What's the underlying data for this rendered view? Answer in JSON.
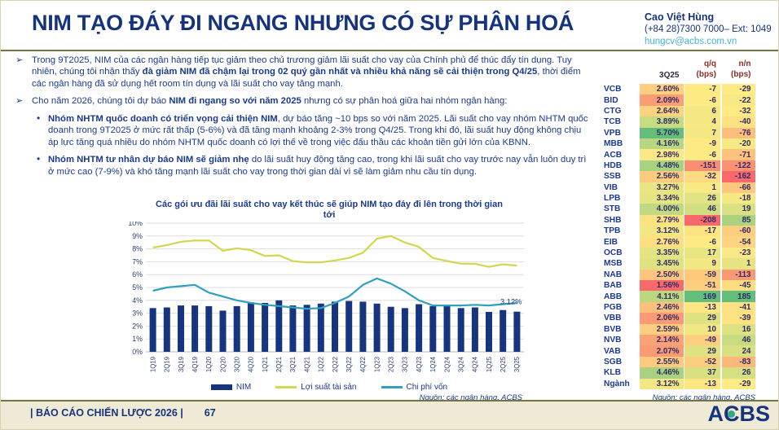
{
  "colors": {
    "navy": "#16337E",
    "text_navy": "#1B3A8F",
    "bar_navy": "#17357F",
    "yellow_line": "#D3D64E",
    "teal_line": "#2FA0BD",
    "email_teal": "#45B4CE",
    "olive_divider": "#75753F",
    "footer_bg": "#EFEAD6",
    "heat_low": "#F8696B",
    "heat_mid": "#FFEB84",
    "heat_high": "#63BE7B",
    "header_red": "#8B2E26",
    "logo_dot": "#36A889"
  },
  "header": {
    "title": "NIM TẠO ĐÁY ĐI NGANG NHƯNG CÓ SỰ PHÂN HOÁ",
    "contact_name": "Cao Việt Hùng",
    "contact_phone": "(+84 28)7300 7000– Ext: 1049",
    "contact_email": "hungcv@acbs.com.vn"
  },
  "bullets": {
    "b1": [
      {
        "t": "Trong 9T2025, NIM của các ngân hàng tiếp tục giảm theo chủ trương giảm lãi suất cho vay của Chính phủ để thúc đẩy tín dụng. Tuy nhiên, chúng tôi nhận thấy ",
        "b": false
      },
      {
        "t": "đà giảm NIM đã chậm lại trong 02 quý gần nhất và nhiều khả năng sẽ cải thiện trong Q4/25",
        "b": true
      },
      {
        "t": ", thời điểm các ngân hàng đã sử dụng hết room tín dụng và lãi suất cho vay tăng mạnh.",
        "b": false
      }
    ],
    "b2": [
      {
        "t": "Cho năm 2026, chúng tôi dự báo ",
        "b": false
      },
      {
        "t": "NIM đi ngang so với năm 2025",
        "b": true
      },
      {
        "t": " nhưng có sự phân hoá giữa hai nhóm ngân hàng:",
        "b": false
      }
    ],
    "s1": [
      {
        "t": "Nhóm NHTM quốc doanh có triển vọng cải thiện NIM",
        "b": true
      },
      {
        "t": ", dự báo tăng ~10 bps so với năm 2025. Lãi suất cho vay nhóm NHTM quốc doanh trong 9T2025 ở mức rất thấp (5-6%) và đã tăng mạnh khoảng 2-3% trong Q4/25. Trong khi đó, lãi suất huy động không chịu áp lực tăng quá nhiều do nhóm NHTM quốc doanh có lợi thế về trong việc đấu thầu các khoản tiền gửi lớn của KBNN.",
        "b": false
      }
    ],
    "s2": [
      {
        "t": "Nhóm NHTM tư nhân dự báo NIM sẽ giảm nhẹ",
        "b": true
      },
      {
        "t": " do lãi suất huy động tăng cao, trong khi lãi suất cho vay trước nay vẫn luôn duy trì ở mức cao (7-9%) và khó tăng mạnh lãi suất cho vay trong thời gian dài vì sẽ làm giảm nhu cầu tín dụng.",
        "b": false
      }
    ]
  },
  "chart": {
    "source": "Nguồn: các ngân hàng, ACBS"
  },
  "chart_data": {
    "type": "bar",
    "title": "Các gói ưu đãi lãi suất cho vay kết thúc sẽ giúp NIM tạo đáy đi lên trong thời gian tới",
    "ylim": [
      0,
      10
    ],
    "ytick_suffix": "%",
    "grid": true,
    "legend_position": "bottom",
    "categories": [
      "1Q19",
      "2Q19",
      "3Q19",
      "4Q19",
      "1Q20",
      "2Q20",
      "3Q20",
      "4Q20",
      "1Q21",
      "2Q21",
      "3Q21",
      "4Q21",
      "1Q22",
      "2Q22",
      "3Q22",
      "4Q22",
      "1Q23",
      "2Q23",
      "3Q23",
      "4Q23",
      "1Q24",
      "2Q24",
      "3Q24",
      "4Q24",
      "1Q25",
      "2Q25",
      "3Q25"
    ],
    "series": [
      {
        "name": "NIM",
        "type": "bar",
        "values": [
          3.4,
          3.45,
          3.6,
          3.6,
          3.55,
          3.2,
          3.55,
          3.85,
          3.8,
          4.0,
          3.6,
          3.65,
          3.75,
          3.9,
          3.95,
          3.9,
          3.75,
          3.5,
          3.4,
          3.7,
          3.55,
          3.55,
          3.4,
          3.45,
          3.1,
          3.25,
          3.12
        ]
      },
      {
        "name": "Lợi suất tài sản",
        "type": "line",
        "values": [
          8.1,
          8.3,
          8.55,
          8.65,
          8.65,
          7.85,
          8.05,
          7.9,
          7.45,
          7.5,
          7.05,
          6.95,
          6.95,
          7.1,
          7.3,
          7.7,
          8.8,
          9.0,
          8.5,
          8.15,
          7.3,
          7.05,
          6.85,
          6.85,
          6.6,
          6.8,
          6.7
        ]
      },
      {
        "name": "Chi phí vốn",
        "type": "line",
        "values": [
          4.75,
          5.0,
          5.1,
          5.2,
          4.6,
          4.3,
          4.0,
          3.8,
          3.65,
          3.55,
          3.45,
          3.35,
          3.4,
          3.8,
          4.3,
          5.2,
          5.7,
          5.3,
          4.7,
          4.0,
          3.6,
          3.6,
          3.6,
          3.65,
          3.6,
          3.7,
          3.8
        ]
      }
    ],
    "annotation": {
      "text": "3.12%",
      "x": "3Q25",
      "y": 3.12
    }
  },
  "table": {
    "headers": {
      "period": "3Q25",
      "qoq": "q/q",
      "yoy": "n/n",
      "bps": "(bps)"
    },
    "rows": [
      {
        "bank": "VCB",
        "nim": "2.60%",
        "qoq": -7,
        "yoy": -29
      },
      {
        "bank": "BID",
        "nim": "2.09%",
        "qoq": -6,
        "yoy": -22
      },
      {
        "bank": "CTG",
        "nim": "2.64%",
        "qoq": 6,
        "yoy": -32
      },
      {
        "bank": "TCB",
        "nim": "3.89%",
        "qoq": 4,
        "yoy": -40
      },
      {
        "bank": "VPB",
        "nim": "5.70%",
        "qoq": 7,
        "yoy": -76
      },
      {
        "bank": "MBB",
        "nim": "4.16%",
        "qoq": -9,
        "yoy": -20
      },
      {
        "bank": "ACB",
        "nim": "2.98%",
        "qoq": -6,
        "yoy": -71
      },
      {
        "bank": "HDB",
        "nim": "4.48%",
        "qoq": -151,
        "yoy": -122
      },
      {
        "bank": "SSB",
        "nim": "2.56%",
        "qoq": -32,
        "yoy": -162
      },
      {
        "bank": "VIB",
        "nim": "3.27%",
        "qoq": 1,
        "yoy": -66
      },
      {
        "bank": "LPB",
        "nim": "3.34%",
        "qoq": 26,
        "yoy": -18
      },
      {
        "bank": "STB",
        "nim": "4.00%",
        "qoq": 46,
        "yoy": 19
      },
      {
        "bank": "SHB",
        "nim": "2.79%",
        "qoq": -208,
        "yoy": 85
      },
      {
        "bank": "TPB",
        "nim": "3.12%",
        "qoq": -17,
        "yoy": -60
      },
      {
        "bank": "EIB",
        "nim": "2.76%",
        "qoq": -6,
        "yoy": -54
      },
      {
        "bank": "OCB",
        "nim": "3.35%",
        "qoq": 17,
        "yoy": -23
      },
      {
        "bank": "MSB",
        "nim": "3.45%",
        "qoq": 9,
        "yoy": 1
      },
      {
        "bank": "NAB",
        "nim": "2.50%",
        "qoq": -59,
        "yoy": -113
      },
      {
        "bank": "BAB",
        "nim": "1.56%",
        "qoq": -51,
        "yoy": -45
      },
      {
        "bank": "ABB",
        "nim": "4.11%",
        "qoq": 169,
        "yoy": 185
      },
      {
        "bank": "PGB",
        "nim": "2.46%",
        "qoq": -13,
        "yoy": -41
      },
      {
        "bank": "VBB",
        "nim": "2.06%",
        "qoq": 29,
        "yoy": -39
      },
      {
        "bank": "BVB",
        "nim": "2.59%",
        "qoq": 10,
        "yoy": 16
      },
      {
        "bank": "NVB",
        "nim": "2.14%",
        "qoq": -49,
        "yoy": 46
      },
      {
        "bank": "VAB",
        "nim": "2.07%",
        "qoq": 29,
        "yoy": 24
      },
      {
        "bank": "SGB",
        "nim": "2.55%",
        "qoq": -52,
        "yoy": -83
      },
      {
        "bank": "KLB",
        "nim": "4.46%",
        "qoq": 37,
        "yoy": 26
      },
      {
        "bank": "Ngành",
        "nim": "3.12%",
        "qoq": -13,
        "yoy": -29
      }
    ],
    "source": "Nguồn: các ngân hàng, ACBS"
  },
  "footer": {
    "report": "| BÁO CÁO CHIẾN LƯỢC 2026 |",
    "page": "67",
    "logo_a": "A",
    "logo_c": "C",
    "logo_bs": "BS"
  }
}
